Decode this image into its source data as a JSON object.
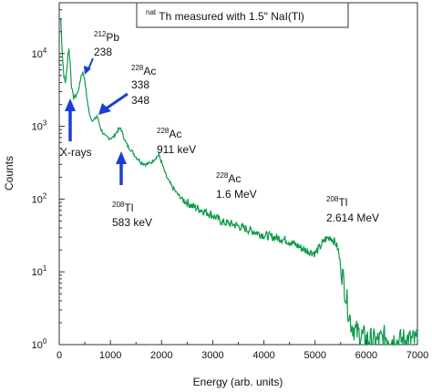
{
  "chart_data": {
    "type": "line",
    "title": {
      "sup": "nat",
      "text": "Th measured with 1.5\" NaI(Tl)"
    },
    "xlabel": "Energy (arb. units)",
    "ylabel": "Counts",
    "xlim": [
      0,
      7000
    ],
    "ylim": [
      1,
      50000
    ],
    "yscale": "log",
    "grid": false,
    "legend": "none",
    "line_color": "#0e9a4c",
    "arrow_color": "#1a3fd6",
    "x_ticks": [
      0,
      1000,
      2000,
      3000,
      4000,
      5000,
      6000,
      7000
    ],
    "y_ticks": [
      {
        "value": 1,
        "base": "10",
        "exp": "0"
      },
      {
        "value": 10,
        "base": "10",
        "exp": "1"
      },
      {
        "value": 100,
        "base": "10",
        "exp": "2"
      },
      {
        "value": 1000,
        "base": "10",
        "exp": "3"
      },
      {
        "value": 10000,
        "base": "10",
        "exp": "4"
      }
    ],
    "series": [
      {
        "x": [
          30,
          60,
          90,
          120,
          150,
          170,
          190,
          210,
          240,
          280,
          320,
          360,
          400,
          430,
          460,
          490,
          520,
          550,
          580,
          620,
          660,
          700,
          740,
          780,
          820,
          860,
          900,
          950,
          1000,
          1050,
          1100,
          1150,
          1200,
          1250,
          1300,
          1350,
          1400,
          1500,
          1600,
          1700,
          1800,
          1850,
          1900,
          1950,
          2000,
          2050,
          2100,
          2200,
          2300,
          2400,
          2500,
          2600,
          2800,
          3000,
          3200,
          3400,
          3600,
          3800,
          4000,
          4200,
          4400,
          4600,
          4800,
          5000,
          5100,
          5200,
          5300,
          5400,
          5450,
          5500,
          5550,
          5600,
          5650,
          5700,
          5800,
          6000,
          6200,
          6400,
          6600,
          6800,
          7000
        ],
        "y": [
          30000,
          10000,
          5000,
          4000,
          6000,
          10000,
          11500,
          8000,
          3500,
          2500,
          2600,
          2900,
          3800,
          5000,
          5500,
          4800,
          3200,
          2200,
          1600,
          1300,
          1200,
          1250,
          1400,
          1100,
          900,
          800,
          720,
          700,
          690,
          700,
          800,
          880,
          950,
          750,
          600,
          520,
          480,
          380,
          320,
          300,
          320,
          350,
          380,
          400,
          320,
          250,
          200,
          150,
          120,
          100,
          90,
          80,
          70,
          60,
          48,
          45,
          40,
          36,
          32,
          30,
          28,
          24,
          20,
          18,
          22,
          28,
          30,
          25,
          20,
          12,
          8,
          5,
          3,
          2,
          1.5,
          1.2,
          1.1,
          1.3,
          1.1,
          1.2,
          1.1
        ]
      }
    ],
    "annotations": [
      {
        "sup": "212",
        "lines": [
          "Pb",
          "238"
        ]
      },
      {
        "sup": "228",
        "lines": [
          "Ac",
          "338",
          "348"
        ]
      },
      {
        "lines": [
          "X-rays"
        ]
      },
      {
        "sup": "228",
        "lines": [
          "Ac",
          "911 keV"
        ]
      },
      {
        "sup": "208",
        "lines": [
          "Tl",
          "583 keV"
        ]
      },
      {
        "sup": "228",
        "lines": [
          "Ac",
          "1.6 MeV"
        ]
      },
      {
        "sup": "208",
        "lines": [
          "Tl",
          "2.614 MeV"
        ]
      }
    ]
  }
}
